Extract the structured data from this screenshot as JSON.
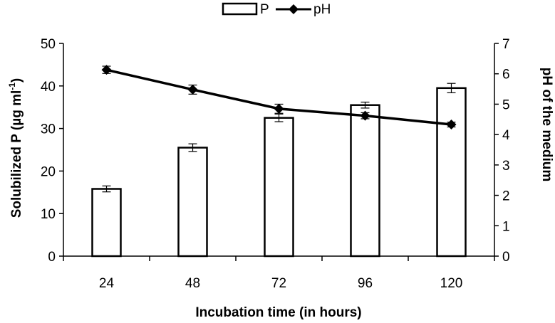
{
  "chart_data": {
    "type": "bar+line",
    "categories": [
      "24",
      "48",
      "72",
      "96",
      "120"
    ],
    "series": [
      {
        "name": "P",
        "kind": "bar",
        "axis": "left",
        "values": [
          15.8,
          25.5,
          32.5,
          35.5,
          39.5
        ],
        "errors": [
          0.7,
          0.9,
          0.9,
          0.7,
          1.1
        ]
      },
      {
        "name": "pH",
        "kind": "line",
        "axis": "right",
        "values": [
          6.13,
          5.48,
          4.85,
          4.62,
          4.33
        ],
        "errors": [
          0.12,
          0.15,
          0.15,
          0.1,
          0.08
        ]
      }
    ],
    "xlabel": "Incubation time (in hours)",
    "ylabel_left": {
      "main": "Solubilized P (µg ml",
      "sup": "-1",
      "tail": ")"
    },
    "ylabel_right": "pH of the medium",
    "ylim_left": [
      0,
      50
    ],
    "yticks_left": [
      "0",
      "10",
      "20",
      "30",
      "40",
      "50"
    ],
    "ylim_right": [
      0,
      7
    ],
    "yticks_right": [
      "0",
      "1",
      "2",
      "3",
      "4",
      "5",
      "6",
      "7"
    ],
    "legend": {
      "position": "top-center",
      "entries": [
        "P",
        "pH"
      ]
    },
    "grid": false
  }
}
